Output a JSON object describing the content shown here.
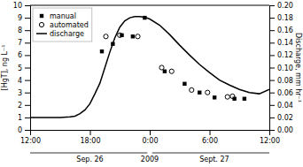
{
  "chart_data": {
    "type": "scatter",
    "y_label": "[HgT], ng L⁻¹",
    "y2_label": "Discharge, mm hr⁻¹",
    "xlim": [
      0,
      24
    ],
    "xticks": [
      {
        "value": 0,
        "label": "12:00"
      },
      {
        "value": 6,
        "label": "18:00"
      },
      {
        "value": 12,
        "label": "0:00"
      },
      {
        "value": 18,
        "label": "6:00"
      },
      {
        "value": 24,
        "label": "12:00"
      }
    ],
    "ylim": [
      0,
      10
    ],
    "yticks": [
      0,
      1,
      2,
      3,
      4,
      5,
      6,
      7,
      8,
      9,
      10
    ],
    "y2lim": [
      0,
      0.2
    ],
    "y2ticks": [
      {
        "value": 0.0,
        "label": "0.00"
      },
      0.02,
      0.04,
      0.06,
      0.08,
      {
        "value": 0.1,
        "label": "0.10"
      },
      0.12,
      0.14,
      0.16,
      0.18,
      {
        "value": 0.2,
        "label": "0.20"
      }
    ],
    "grid": false,
    "legend": "upper left",
    "series": [
      {
        "name": "manual",
        "type": "scatter",
        "marker": "square",
        "color": "#000000",
        "x": [
          7.2,
          8.3,
          9.2,
          10.3,
          11.5,
          13.5,
          15.5,
          17.0,
          18.5,
          20.5,
          21.5
        ],
        "values": [
          6.3,
          6.9,
          7.6,
          7.5,
          9.0,
          4.7,
          3.7,
          3.0,
          2.6,
          2.5,
          2.5
        ]
      },
      {
        "name": "automated",
        "type": "scatter",
        "marker": "circle",
        "color": "#000000",
        "x": [
          7.6,
          9.0,
          10.8,
          13.2,
          14.2,
          16.2,
          17.8,
          19.8,
          20.3
        ],
        "values": [
          7.5,
          7.6,
          7.5,
          5.0,
          4.7,
          3.2,
          3.0,
          2.65,
          2.7
        ]
      },
      {
        "name": "discharge",
        "type": "line",
        "axis": "y2",
        "line_style": "solid",
        "color": "#000000",
        "x": [
          0,
          1,
          2,
          3,
          4,
          4.5,
          5,
          5.5,
          6,
          6.5,
          7,
          7.5,
          8,
          8.5,
          9,
          9.5,
          10,
          10.5,
          11,
          11.5,
          12,
          13,
          14,
          15,
          16,
          17,
          18,
          19,
          20,
          21,
          22,
          23,
          24
        ],
        "values": [
          0.02,
          0.02,
          0.02,
          0.02,
          0.021,
          0.022,
          0.026,
          0.032,
          0.042,
          0.058,
          0.075,
          0.1,
          0.125,
          0.148,
          0.165,
          0.175,
          0.18,
          0.182,
          0.182,
          0.181,
          0.178,
          0.168,
          0.153,
          0.136,
          0.12,
          0.105,
          0.092,
          0.08,
          0.072,
          0.065,
          0.06,
          0.058,
          0.065
        ]
      }
    ],
    "annotations": [
      {
        "text": "Sep. 26"
      },
      {
        "text": "2009"
      },
      {
        "text": "Sept. 27"
      }
    ]
  }
}
